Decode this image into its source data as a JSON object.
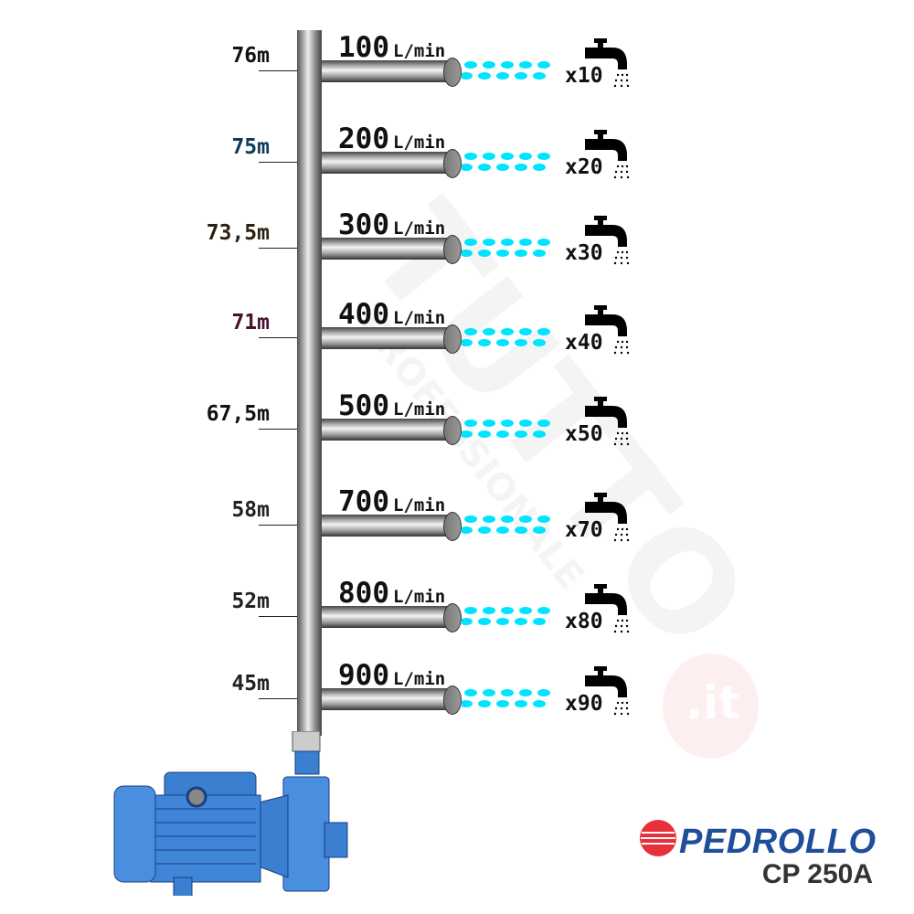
{
  "watermark": {
    "main": "TUTTO",
    "sub": "PROFESSIONALE",
    "suffix": ".it"
  },
  "rows": [
    {
      "height": "76m",
      "flow": "100",
      "unit": "L/min",
      "taps": "x10",
      "label_color": "#111111"
    },
    {
      "height": "75m",
      "flow": "200",
      "unit": "L/min",
      "taps": "x20",
      "label_color": "#0d3b5a"
    },
    {
      "height": "73,5m",
      "flow": "300",
      "unit": "L/min",
      "taps": "x30",
      "label_color": "#2a2010"
    },
    {
      "height": "71m",
      "flow": "400",
      "unit": "L/min",
      "taps": "x40",
      "label_color": "#4a1030"
    },
    {
      "height": "67,5m",
      "flow": "500",
      "unit": "L/min",
      "taps": "x50",
      "label_color": "#111111"
    },
    {
      "height": "58m",
      "flow": "700",
      "unit": "L/min",
      "taps": "x70",
      "label_color": "#222222"
    },
    {
      "height": "52m",
      "flow": "800",
      "unit": "L/min",
      "taps": "x80",
      "label_color": "#222222"
    },
    {
      "height": "45m",
      "flow": "900",
      "unit": "L/min",
      "taps": "x90",
      "label_color": "#222222"
    }
  ],
  "brand": {
    "name": "PEDROLLO",
    "model": "CP 250A",
    "brand_color": "#1f4e9a",
    "logo_red": "#e8303a"
  },
  "colors": {
    "water": "#00e5ff",
    "pump": "#3a7fd0"
  }
}
